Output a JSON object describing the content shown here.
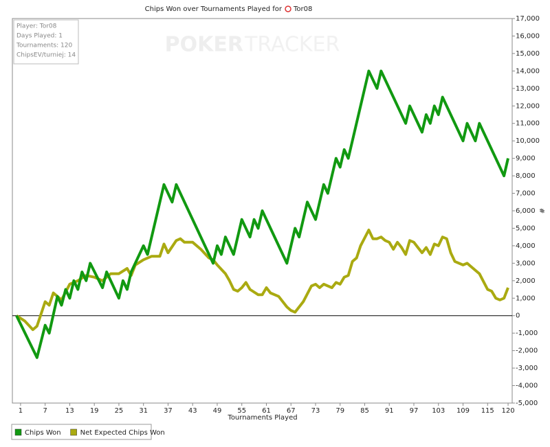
{
  "chart_data": {
    "type": "line",
    "title": "Chips Won over Tournaments Played for",
    "player": "Tor08",
    "watermark": [
      "POKER",
      "TRACKER"
    ],
    "info": [
      "Player: Tor08",
      "Days Played: 1",
      "Tournaments: 120",
      "ChipsEV/turniej: 14"
    ],
    "x_label": "Tournaments Played",
    "y_label": "#",
    "xlim": [
      -1,
      121
    ],
    "xticks": [
      1,
      7,
      13,
      19,
      25,
      31,
      37,
      43,
      49,
      55,
      61,
      67,
      73,
      79,
      85,
      91,
      97,
      103,
      109,
      115,
      120
    ],
    "ylim": [
      -5000,
      17000
    ],
    "yticks": [
      {
        "value": -5000,
        "label": "-5,000"
      },
      {
        "value": -4000,
        "label": "-4,000"
      },
      {
        "value": -3000,
        "label": "-3,000"
      },
      {
        "value": -2000,
        "label": "-2,000"
      },
      {
        "value": -1000,
        "label": "-1,000"
      },
      0,
      {
        "value": 1000,
        "label": "1,000"
      },
      {
        "value": 2000,
        "label": "2,000"
      },
      {
        "value": 3000,
        "label": "3,000"
      },
      {
        "value": 4000,
        "label": "4,000"
      },
      {
        "value": 5000,
        "label": "5,000"
      },
      {
        "value": 6000,
        "label": "6,000"
      },
      {
        "value": 7000,
        "label": "7,000"
      },
      {
        "value": 8000,
        "label": "8,000"
      },
      {
        "value": 9000,
        "label": "9,000"
      },
      {
        "value": 10000,
        "label": "10,000"
      },
      {
        "value": 11000,
        "label": "11,000"
      },
      {
        "value": 12000,
        "label": "12,000"
      },
      {
        "value": 13000,
        "label": "13,000"
      },
      {
        "value": 14000,
        "label": "14,000"
      },
      {
        "value": 15000,
        "label": "15,000"
      },
      {
        "value": 16000,
        "label": "16,000"
      },
      {
        "value": 17000,
        "label": "17,000"
      }
    ],
    "series": [
      {
        "name": "Chips Won",
        "color": "#119911",
        "x": [
          0,
          5,
          7,
          8,
          10,
          11,
          12,
          13,
          14,
          15,
          16,
          17,
          18,
          21,
          22,
          25,
          26,
          27,
          28,
          31,
          32,
          36,
          38,
          39,
          48,
          49,
          50,
          51,
          53,
          55,
          57,
          58,
          59,
          60,
          66,
          68,
          69,
          71,
          73,
          75,
          76,
          78,
          79,
          80,
          81,
          86,
          88,
          89,
          95,
          96,
          99,
          100,
          101,
          102,
          103,
          104,
          109,
          110,
          112,
          113,
          119,
          120
        ],
        "values": [
          0,
          -2400,
          -550,
          -1000,
          1100,
          600,
          1500,
          1000,
          2000,
          1500,
          2500,
          2000,
          3000,
          1600,
          2500,
          1000,
          2000,
          1500,
          2500,
          4000,
          3500,
          7500,
          6500,
          7500,
          3000,
          4000,
          3500,
          4500,
          3500,
          5500,
          4500,
          5500,
          5000,
          6000,
          3000,
          5000,
          4500,
          6500,
          5500,
          7500,
          7000,
          9000,
          8500,
          9500,
          9000,
          14000,
          13000,
          14000,
          11000,
          12000,
          10500,
          11500,
          11000,
          12000,
          11500,
          12500,
          10000,
          11000,
          10000,
          11000,
          8000,
          9000
        ]
      },
      {
        "name": "Net Expected Chips Won",
        "color": "#aaaa11",
        "x": [
          0,
          2,
          4,
          5,
          7,
          8,
          9,
          11,
          13,
          15,
          17,
          19,
          21,
          23,
          25,
          27,
          28,
          29,
          31,
          33,
          35,
          36,
          37,
          39,
          40,
          41,
          43,
          45,
          47,
          48,
          49,
          51,
          52,
          53,
          54,
          55,
          56,
          57,
          59,
          60,
          61,
          62,
          64,
          66,
          67,
          68,
          70,
          72,
          73,
          74,
          75,
          77,
          78,
          79,
          80,
          81,
          82,
          83,
          84,
          86,
          87,
          88,
          89,
          90,
          91,
          92,
          93,
          94,
          95,
          96,
          97,
          98,
          99,
          100,
          101,
          102,
          103,
          104,
          105,
          106,
          107,
          109,
          110,
          111,
          113,
          115,
          116,
          117,
          118,
          119,
          120
        ],
        "values": [
          0,
          -300,
          -800,
          -600,
          800,
          600,
          1300,
          900,
          1800,
          2000,
          2300,
          2200,
          2000,
          2400,
          2400,
          2700,
          2300,
          2900,
          3200,
          3400,
          3400,
          4100,
          3600,
          4300,
          4400,
          4200,
          4200,
          3800,
          3300,
          3200,
          2900,
          2400,
          2000,
          1500,
          1400,
          1600,
          1900,
          1500,
          1200,
          1200,
          1600,
          1300,
          1100,
          500,
          300,
          200,
          800,
          1700,
          1800,
          1600,
          1800,
          1600,
          1900,
          1800,
          2200,
          2300,
          3100,
          3300,
          4000,
          4900,
          4400,
          4400,
          4500,
          4300,
          4200,
          3800,
          4200,
          3900,
          3500,
          4300,
          4200,
          3900,
          3600,
          3900,
          3500,
          4100,
          4000,
          4500,
          4400,
          3600,
          3100,
          2900,
          3000,
          2800,
          2400,
          1500,
          1400,
          1000,
          900,
          1000,
          1600
        ]
      }
    ]
  }
}
